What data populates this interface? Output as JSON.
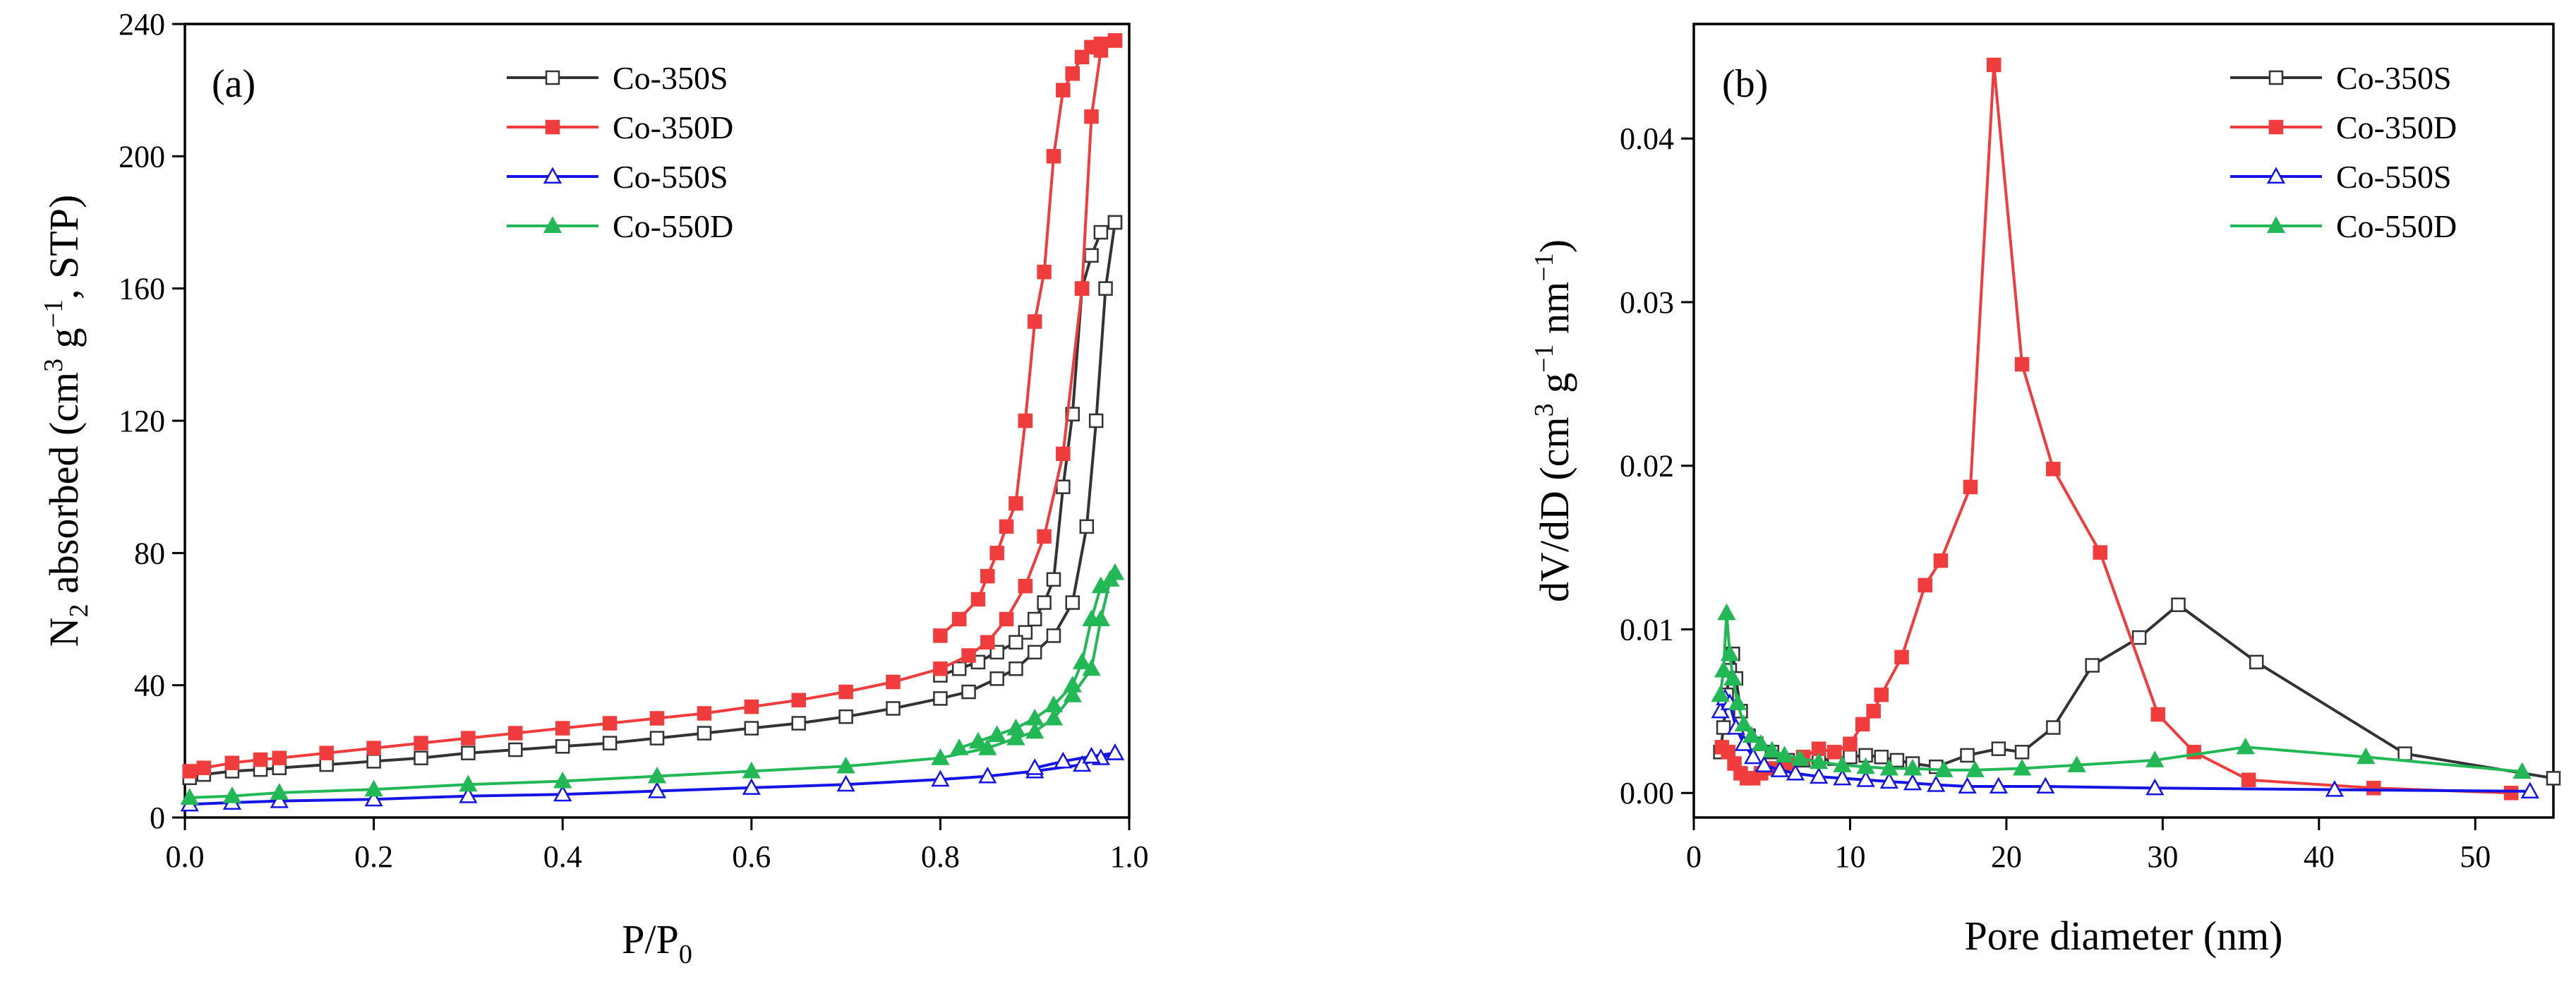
{
  "chart_data": [
    {
      "type": "line",
      "panel_label": "(a)",
      "xlabel": "P/P0",
      "xlabel_parts": {
        "base": "P/P",
        "sub": "0"
      },
      "ylabel": "N2 absorbed (cm3 g−1, STP)",
      "ylabel_parts": {
        "n": "N",
        "n_sub": "2",
        "mid": " absorbed (cm",
        "cm_sup": "3",
        "g": " g",
        "g_sup": "−1",
        "tail": ", STP)"
      },
      "xlim": [
        0,
        1.0
      ],
      "ylim": [
        0,
        240
      ],
      "xticks": [
        "0.0",
        "0.2",
        "0.4",
        "0.6",
        "0.8",
        "1.0"
      ],
      "yticks": [
        "0",
        "40",
        "80",
        "120",
        "160",
        "200",
        "240"
      ],
      "legend_position": "top-right",
      "series": [
        {
          "name": "Co-350S",
          "color": "#333333",
          "marker": "square-open",
          "adsorption": [
            [
              0.005,
              12
            ],
            [
              0.02,
              13
            ],
            [
              0.05,
              14
            ],
            [
              0.08,
              14.5
            ],
            [
              0.1,
              15
            ],
            [
              0.15,
              16
            ],
            [
              0.2,
              17
            ],
            [
              0.25,
              18
            ],
            [
              0.3,
              19.5
            ],
            [
              0.35,
              20.5
            ],
            [
              0.4,
              21.5
            ],
            [
              0.45,
              22.5
            ],
            [
              0.5,
              24
            ],
            [
              0.55,
              25.5
            ],
            [
              0.6,
              27
            ],
            [
              0.65,
              28.5
            ],
            [
              0.7,
              30.5
            ],
            [
              0.75,
              33
            ],
            [
              0.8,
              36
            ],
            [
              0.83,
              38
            ],
            [
              0.86,
              42
            ],
            [
              0.88,
              45
            ],
            [
              0.9,
              50
            ],
            [
              0.92,
              55
            ],
            [
              0.94,
              65
            ],
            [
              0.955,
              88
            ],
            [
              0.965,
              120
            ],
            [
              0.975,
              160
            ],
            [
              0.985,
              180
            ]
          ],
          "desorption": [
            [
              0.985,
              180
            ],
            [
              0.97,
              177
            ],
            [
              0.96,
              170
            ],
            [
              0.95,
              160
            ],
            [
              0.94,
              122
            ],
            [
              0.93,
              100
            ],
            [
              0.92,
              72
            ],
            [
              0.91,
              65
            ],
            [
              0.9,
              60
            ],
            [
              0.89,
              56
            ],
            [
              0.88,
              53
            ],
            [
              0.86,
              50
            ],
            [
              0.84,
              47
            ],
            [
              0.82,
              45
            ],
            [
              0.8,
              43
            ]
          ]
        },
        {
          "name": "Co-350D",
          "color": "#f03c3c",
          "marker": "square-filled",
          "adsorption": [
            [
              0.005,
              14
            ],
            [
              0.02,
              15
            ],
            [
              0.05,
              16.5
            ],
            [
              0.08,
              17.5
            ],
            [
              0.1,
              18
            ],
            [
              0.15,
              19.5
            ],
            [
              0.2,
              21
            ],
            [
              0.25,
              22.5
            ],
            [
              0.3,
              24
            ],
            [
              0.35,
              25.5
            ],
            [
              0.4,
              27
            ],
            [
              0.45,
              28.5
            ],
            [
              0.5,
              30
            ],
            [
              0.55,
              31.5
            ],
            [
              0.6,
              33.5
            ],
            [
              0.65,
              35.5
            ],
            [
              0.7,
              38
            ],
            [
              0.75,
              41
            ],
            [
              0.8,
              45
            ],
            [
              0.83,
              49
            ],
            [
              0.85,
              53
            ],
            [
              0.87,
              60
            ],
            [
              0.89,
              70
            ],
            [
              0.91,
              85
            ],
            [
              0.93,
              110
            ],
            [
              0.95,
              160
            ],
            [
              0.96,
              212
            ],
            [
              0.97,
              232
            ],
            [
              0.985,
              235
            ]
          ],
          "desorption": [
            [
              0.985,
              235
            ],
            [
              0.97,
              234
            ],
            [
              0.96,
              233
            ],
            [
              0.95,
              230
            ],
            [
              0.94,
              225
            ],
            [
              0.93,
              220
            ],
            [
              0.92,
              200
            ],
            [
              0.91,
              165
            ],
            [
              0.9,
              150
            ],
            [
              0.89,
              120
            ],
            [
              0.88,
              95
            ],
            [
              0.87,
              88
            ],
            [
              0.86,
              80
            ],
            [
              0.85,
              73
            ],
            [
              0.84,
              66
            ],
            [
              0.82,
              60
            ],
            [
              0.8,
              55
            ]
          ]
        },
        {
          "name": "Co-550S",
          "color": "#1414e6",
          "marker": "triangle-open",
          "adsorption": [
            [
              0.005,
              4
            ],
            [
              0.05,
              4.5
            ],
            [
              0.1,
              5
            ],
            [
              0.2,
              5.5
            ],
            [
              0.3,
              6.5
            ],
            [
              0.4,
              7
            ],
            [
              0.5,
              8
            ],
            [
              0.6,
              9
            ],
            [
              0.7,
              10
            ],
            [
              0.8,
              11.5
            ],
            [
              0.85,
              12.5
            ],
            [
              0.9,
              14
            ],
            [
              0.95,
              16
            ],
            [
              0.97,
              18
            ],
            [
              0.985,
              19.5
            ]
          ],
          "desorption": [
            [
              0.985,
              19.5
            ],
            [
              0.96,
              18.5
            ],
            [
              0.93,
              17
            ],
            [
              0.9,
              15
            ]
          ]
        },
        {
          "name": "Co-550D",
          "color": "#22b855",
          "marker": "triangle-filled",
          "adsorption": [
            [
              0.005,
              6
            ],
            [
              0.05,
              6.5
            ],
            [
              0.1,
              7.5
            ],
            [
              0.2,
              8.5
            ],
            [
              0.3,
              10
            ],
            [
              0.4,
              11
            ],
            [
              0.5,
              12.5
            ],
            [
              0.6,
              14
            ],
            [
              0.7,
              15.5
            ],
            [
              0.8,
              18
            ],
            [
              0.85,
              21
            ],
            [
              0.88,
              24
            ],
            [
              0.9,
              26
            ],
            [
              0.92,
              30
            ],
            [
              0.94,
              37
            ],
            [
              0.96,
              45
            ],
            [
              0.97,
              60
            ],
            [
              0.98,
              72
            ],
            [
              0.985,
              74
            ]
          ],
          "desorption": [
            [
              0.985,
              74
            ],
            [
              0.97,
              70
            ],
            [
              0.96,
              60
            ],
            [
              0.95,
              47
            ],
            [
              0.94,
              40
            ],
            [
              0.92,
              34
            ],
            [
              0.9,
              30
            ],
            [
              0.88,
              27
            ],
            [
              0.86,
              25
            ],
            [
              0.84,
              23
            ],
            [
              0.82,
              21
            ]
          ]
        }
      ]
    },
    {
      "type": "line",
      "panel_label": "(b)",
      "xlabel": "Pore diameter (nm)",
      "ylabel": "dV/dD (cm3 g−1 nm−1)",
      "ylabel_parts": {
        "lead": "dV/dD (cm",
        "cm_sup": "3",
        "g": " g",
        "g_sup": "−1",
        "nm": " nm",
        "nm_sup": "−1",
        "tail": ")"
      },
      "xlim": [
        0,
        55
      ],
      "ylim": [
        -0.0015,
        0.047
      ],
      "xticks": [
        "0",
        "10",
        "20",
        "30",
        "40",
        "50"
      ],
      "xtick_values": [
        0,
        10,
        20,
        30,
        40,
        50
      ],
      "yticks": [
        "0.00",
        "0.01",
        "0.02",
        "0.03",
        "0.04"
      ],
      "ytick_values": [
        0,
        0.01,
        0.02,
        0.03,
        0.04
      ],
      "legend_position": "top-right",
      "series": [
        {
          "name": "Co-350S",
          "color": "#333333",
          "marker": "square-open",
          "points": [
            [
              1.7,
              0.0025
            ],
            [
              1.9,
              0.004
            ],
            [
              2.1,
              0.006
            ],
            [
              2.3,
              0.0075
            ],
            [
              2.5,
              0.0085
            ],
            [
              2.7,
              0.007
            ],
            [
              3.0,
              0.005
            ],
            [
              3.5,
              0.0035
            ],
            [
              4.0,
              0.003
            ],
            [
              5.0,
              0.0025
            ],
            [
              6.0,
              0.002
            ],
            [
              7.0,
              0.002
            ],
            [
              8.0,
              0.002
            ],
            [
              9.0,
              0.0021
            ],
            [
              10.0,
              0.0022
            ],
            [
              11.0,
              0.0023
            ],
            [
              12.0,
              0.0022
            ],
            [
              13.0,
              0.002
            ],
            [
              14.0,
              0.0018
            ],
            [
              15.5,
              0.0016
            ],
            [
              17.5,
              0.0023
            ],
            [
              19.5,
              0.0027
            ],
            [
              21.0,
              0.0025
            ],
            [
              23.0,
              0.004
            ],
            [
              25.5,
              0.0078
            ],
            [
              28.5,
              0.0095
            ],
            [
              31.0,
              0.0115
            ],
            [
              36.0,
              0.008
            ],
            [
              45.5,
              0.0024
            ],
            [
              55.0,
              0.0009
            ]
          ]
        },
        {
          "name": "Co-350D",
          "color": "#f03c3c",
          "marker": "square-filled",
          "points": [
            [
              1.8,
              0.0028
            ],
            [
              2.2,
              0.0025
            ],
            [
              2.6,
              0.0018
            ],
            [
              3.0,
              0.0012
            ],
            [
              3.4,
              0.0009
            ],
            [
              3.8,
              0.0009
            ],
            [
              4.3,
              0.0012
            ],
            [
              5.0,
              0.0015
            ],
            [
              6.0,
              0.0018
            ],
            [
              7.0,
              0.0022
            ],
            [
              8.0,
              0.0027
            ],
            [
              9.0,
              0.0025
            ],
            [
              10.0,
              0.003
            ],
            [
              10.8,
              0.0042
            ],
            [
              11.5,
              0.005
            ],
            [
              12.0,
              0.006
            ],
            [
              13.3,
              0.0083
            ],
            [
              14.8,
              0.0127
            ],
            [
              15.8,
              0.0142
            ],
            [
              17.7,
              0.0187
            ],
            [
              19.2,
              0.0445
            ],
            [
              21.0,
              0.0262
            ],
            [
              23.0,
              0.0198
            ],
            [
              26.0,
              0.0147
            ],
            [
              29.7,
              0.0048
            ],
            [
              32.0,
              0.0025
            ],
            [
              35.5,
              0.0008
            ],
            [
              43.5,
              0.0003
            ],
            [
              52.3,
              0.0
            ]
          ]
        },
        {
          "name": "Co-550S",
          "color": "#1414e6",
          "marker": "triangle-open",
          "points": [
            [
              1.7,
              0.005
            ],
            [
              2.0,
              0.0058
            ],
            [
              2.3,
              0.0055
            ],
            [
              2.7,
              0.004
            ],
            [
              3.2,
              0.003
            ],
            [
              3.8,
              0.0022
            ],
            [
              4.5,
              0.0017
            ],
            [
              5.5,
              0.0014
            ],
            [
              6.5,
              0.0012
            ],
            [
              8.0,
              0.001
            ],
            [
              9.5,
              0.0009
            ],
            [
              11.0,
              0.0008
            ],
            [
              12.5,
              0.0007
            ],
            [
              14.0,
              0.0006
            ],
            [
              15.5,
              0.0005
            ],
            [
              17.5,
              0.0004
            ],
            [
              19.5,
              0.0004
            ],
            [
              22.5,
              0.0004
            ],
            [
              29.5,
              0.0003
            ],
            [
              41.0,
              0.0002
            ],
            [
              53.5,
              0.0001
            ]
          ]
        },
        {
          "name": "Co-550D",
          "color": "#22b855",
          "marker": "triangle-filled",
          "points": [
            [
              1.7,
              0.006
            ],
            [
              1.9,
              0.0075
            ],
            [
              2.1,
              0.011
            ],
            [
              2.3,
              0.0085
            ],
            [
              2.5,
              0.007
            ],
            [
              2.8,
              0.0055
            ],
            [
              3.2,
              0.0042
            ],
            [
              3.7,
              0.0035
            ],
            [
              4.3,
              0.003
            ],
            [
              5.0,
              0.0026
            ],
            [
              5.8,
              0.0023
            ],
            [
              6.8,
              0.0021
            ],
            [
              8.0,
              0.0019
            ],
            [
              9.5,
              0.0017
            ],
            [
              11.0,
              0.0016
            ],
            [
              12.5,
              0.0015
            ],
            [
              14.0,
              0.0015
            ],
            [
              16.0,
              0.0014
            ],
            [
              18.0,
              0.0014
            ],
            [
              21.0,
              0.0015
            ],
            [
              24.5,
              0.0017
            ],
            [
              29.5,
              0.002
            ],
            [
              35.3,
              0.0028
            ],
            [
              43.0,
              0.0022
            ],
            [
              53.0,
              0.0013
            ]
          ]
        }
      ]
    }
  ]
}
